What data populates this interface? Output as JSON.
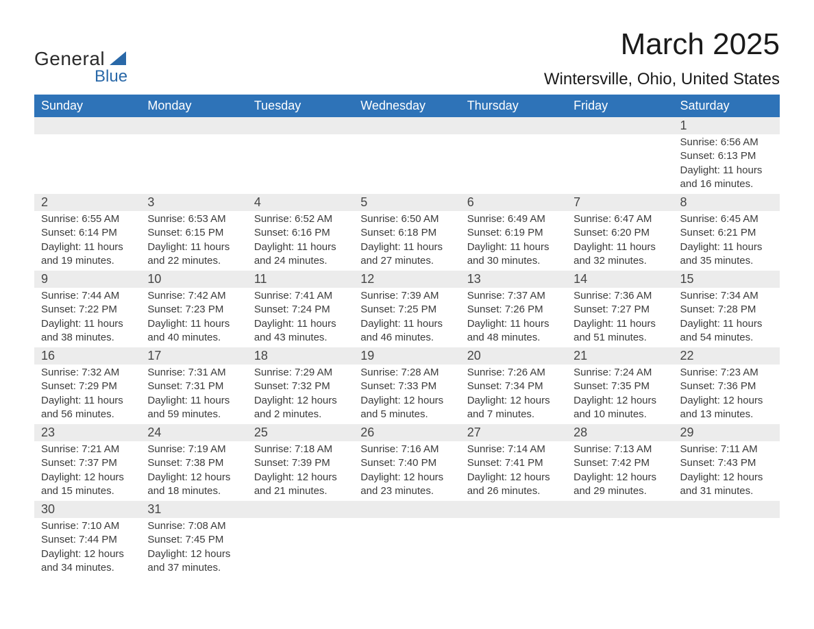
{
  "logo": {
    "top": "General",
    "bottom": "Blue",
    "tri_color": "#2968a8"
  },
  "title": "March 2025",
  "location": "Wintersville, Ohio, United States",
  "colors": {
    "header_bg": "#2e73b8",
    "header_fg": "#ffffff",
    "daynum_bg": "#ececec",
    "row_border": "#2e73b8",
    "text": "#3a3a3a"
  },
  "fonts": {
    "title_pt": 44,
    "location_pt": 24,
    "header_pt": 18,
    "daynum_pt": 18,
    "body_pt": 15
  },
  "weekdays": [
    "Sunday",
    "Monday",
    "Tuesday",
    "Wednesday",
    "Thursday",
    "Friday",
    "Saturday"
  ],
  "weeks": [
    [
      {
        "n": "",
        "lines": [
          "",
          "",
          "",
          ""
        ]
      },
      {
        "n": "",
        "lines": [
          "",
          "",
          "",
          ""
        ]
      },
      {
        "n": "",
        "lines": [
          "",
          "",
          "",
          ""
        ]
      },
      {
        "n": "",
        "lines": [
          "",
          "",
          "",
          ""
        ]
      },
      {
        "n": "",
        "lines": [
          "",
          "",
          "",
          ""
        ]
      },
      {
        "n": "",
        "lines": [
          "",
          "",
          "",
          ""
        ]
      },
      {
        "n": "1",
        "lines": [
          "Sunrise: 6:56 AM",
          "Sunset: 6:13 PM",
          "Daylight: 11 hours",
          "and 16 minutes."
        ]
      }
    ],
    [
      {
        "n": "2",
        "lines": [
          "Sunrise: 6:55 AM",
          "Sunset: 6:14 PM",
          "Daylight: 11 hours",
          "and 19 minutes."
        ]
      },
      {
        "n": "3",
        "lines": [
          "Sunrise: 6:53 AM",
          "Sunset: 6:15 PM",
          "Daylight: 11 hours",
          "and 22 minutes."
        ]
      },
      {
        "n": "4",
        "lines": [
          "Sunrise: 6:52 AM",
          "Sunset: 6:16 PM",
          "Daylight: 11 hours",
          "and 24 minutes."
        ]
      },
      {
        "n": "5",
        "lines": [
          "Sunrise: 6:50 AM",
          "Sunset: 6:18 PM",
          "Daylight: 11 hours",
          "and 27 minutes."
        ]
      },
      {
        "n": "6",
        "lines": [
          "Sunrise: 6:49 AM",
          "Sunset: 6:19 PM",
          "Daylight: 11 hours",
          "and 30 minutes."
        ]
      },
      {
        "n": "7",
        "lines": [
          "Sunrise: 6:47 AM",
          "Sunset: 6:20 PM",
          "Daylight: 11 hours",
          "and 32 minutes."
        ]
      },
      {
        "n": "8",
        "lines": [
          "Sunrise: 6:45 AM",
          "Sunset: 6:21 PM",
          "Daylight: 11 hours",
          "and 35 minutes."
        ]
      }
    ],
    [
      {
        "n": "9",
        "lines": [
          "Sunrise: 7:44 AM",
          "Sunset: 7:22 PM",
          "Daylight: 11 hours",
          "and 38 minutes."
        ]
      },
      {
        "n": "10",
        "lines": [
          "Sunrise: 7:42 AM",
          "Sunset: 7:23 PM",
          "Daylight: 11 hours",
          "and 40 minutes."
        ]
      },
      {
        "n": "11",
        "lines": [
          "Sunrise: 7:41 AM",
          "Sunset: 7:24 PM",
          "Daylight: 11 hours",
          "and 43 minutes."
        ]
      },
      {
        "n": "12",
        "lines": [
          "Sunrise: 7:39 AM",
          "Sunset: 7:25 PM",
          "Daylight: 11 hours",
          "and 46 minutes."
        ]
      },
      {
        "n": "13",
        "lines": [
          "Sunrise: 7:37 AM",
          "Sunset: 7:26 PM",
          "Daylight: 11 hours",
          "and 48 minutes."
        ]
      },
      {
        "n": "14",
        "lines": [
          "Sunrise: 7:36 AM",
          "Sunset: 7:27 PM",
          "Daylight: 11 hours",
          "and 51 minutes."
        ]
      },
      {
        "n": "15",
        "lines": [
          "Sunrise: 7:34 AM",
          "Sunset: 7:28 PM",
          "Daylight: 11 hours",
          "and 54 minutes."
        ]
      }
    ],
    [
      {
        "n": "16",
        "lines": [
          "Sunrise: 7:32 AM",
          "Sunset: 7:29 PM",
          "Daylight: 11 hours",
          "and 56 minutes."
        ]
      },
      {
        "n": "17",
        "lines": [
          "Sunrise: 7:31 AM",
          "Sunset: 7:31 PM",
          "Daylight: 11 hours",
          "and 59 minutes."
        ]
      },
      {
        "n": "18",
        "lines": [
          "Sunrise: 7:29 AM",
          "Sunset: 7:32 PM",
          "Daylight: 12 hours",
          "and 2 minutes."
        ]
      },
      {
        "n": "19",
        "lines": [
          "Sunrise: 7:28 AM",
          "Sunset: 7:33 PM",
          "Daylight: 12 hours",
          "and 5 minutes."
        ]
      },
      {
        "n": "20",
        "lines": [
          "Sunrise: 7:26 AM",
          "Sunset: 7:34 PM",
          "Daylight: 12 hours",
          "and 7 minutes."
        ]
      },
      {
        "n": "21",
        "lines": [
          "Sunrise: 7:24 AM",
          "Sunset: 7:35 PM",
          "Daylight: 12 hours",
          "and 10 minutes."
        ]
      },
      {
        "n": "22",
        "lines": [
          "Sunrise: 7:23 AM",
          "Sunset: 7:36 PM",
          "Daylight: 12 hours",
          "and 13 minutes."
        ]
      }
    ],
    [
      {
        "n": "23",
        "lines": [
          "Sunrise: 7:21 AM",
          "Sunset: 7:37 PM",
          "Daylight: 12 hours",
          "and 15 minutes."
        ]
      },
      {
        "n": "24",
        "lines": [
          "Sunrise: 7:19 AM",
          "Sunset: 7:38 PM",
          "Daylight: 12 hours",
          "and 18 minutes."
        ]
      },
      {
        "n": "25",
        "lines": [
          "Sunrise: 7:18 AM",
          "Sunset: 7:39 PM",
          "Daylight: 12 hours",
          "and 21 minutes."
        ]
      },
      {
        "n": "26",
        "lines": [
          "Sunrise: 7:16 AM",
          "Sunset: 7:40 PM",
          "Daylight: 12 hours",
          "and 23 minutes."
        ]
      },
      {
        "n": "27",
        "lines": [
          "Sunrise: 7:14 AM",
          "Sunset: 7:41 PM",
          "Daylight: 12 hours",
          "and 26 minutes."
        ]
      },
      {
        "n": "28",
        "lines": [
          "Sunrise: 7:13 AM",
          "Sunset: 7:42 PM",
          "Daylight: 12 hours",
          "and 29 minutes."
        ]
      },
      {
        "n": "29",
        "lines": [
          "Sunrise: 7:11 AM",
          "Sunset: 7:43 PM",
          "Daylight: 12 hours",
          "and 31 minutes."
        ]
      }
    ],
    [
      {
        "n": "30",
        "lines": [
          "Sunrise: 7:10 AM",
          "Sunset: 7:44 PM",
          "Daylight: 12 hours",
          "and 34 minutes."
        ]
      },
      {
        "n": "31",
        "lines": [
          "Sunrise: 7:08 AM",
          "Sunset: 7:45 PM",
          "Daylight: 12 hours",
          "and 37 minutes."
        ]
      },
      {
        "n": "",
        "lines": [
          "",
          "",
          "",
          ""
        ]
      },
      {
        "n": "",
        "lines": [
          "",
          "",
          "",
          ""
        ]
      },
      {
        "n": "",
        "lines": [
          "",
          "",
          "",
          ""
        ]
      },
      {
        "n": "",
        "lines": [
          "",
          "",
          "",
          ""
        ]
      },
      {
        "n": "",
        "lines": [
          "",
          "",
          "",
          ""
        ]
      }
    ]
  ]
}
